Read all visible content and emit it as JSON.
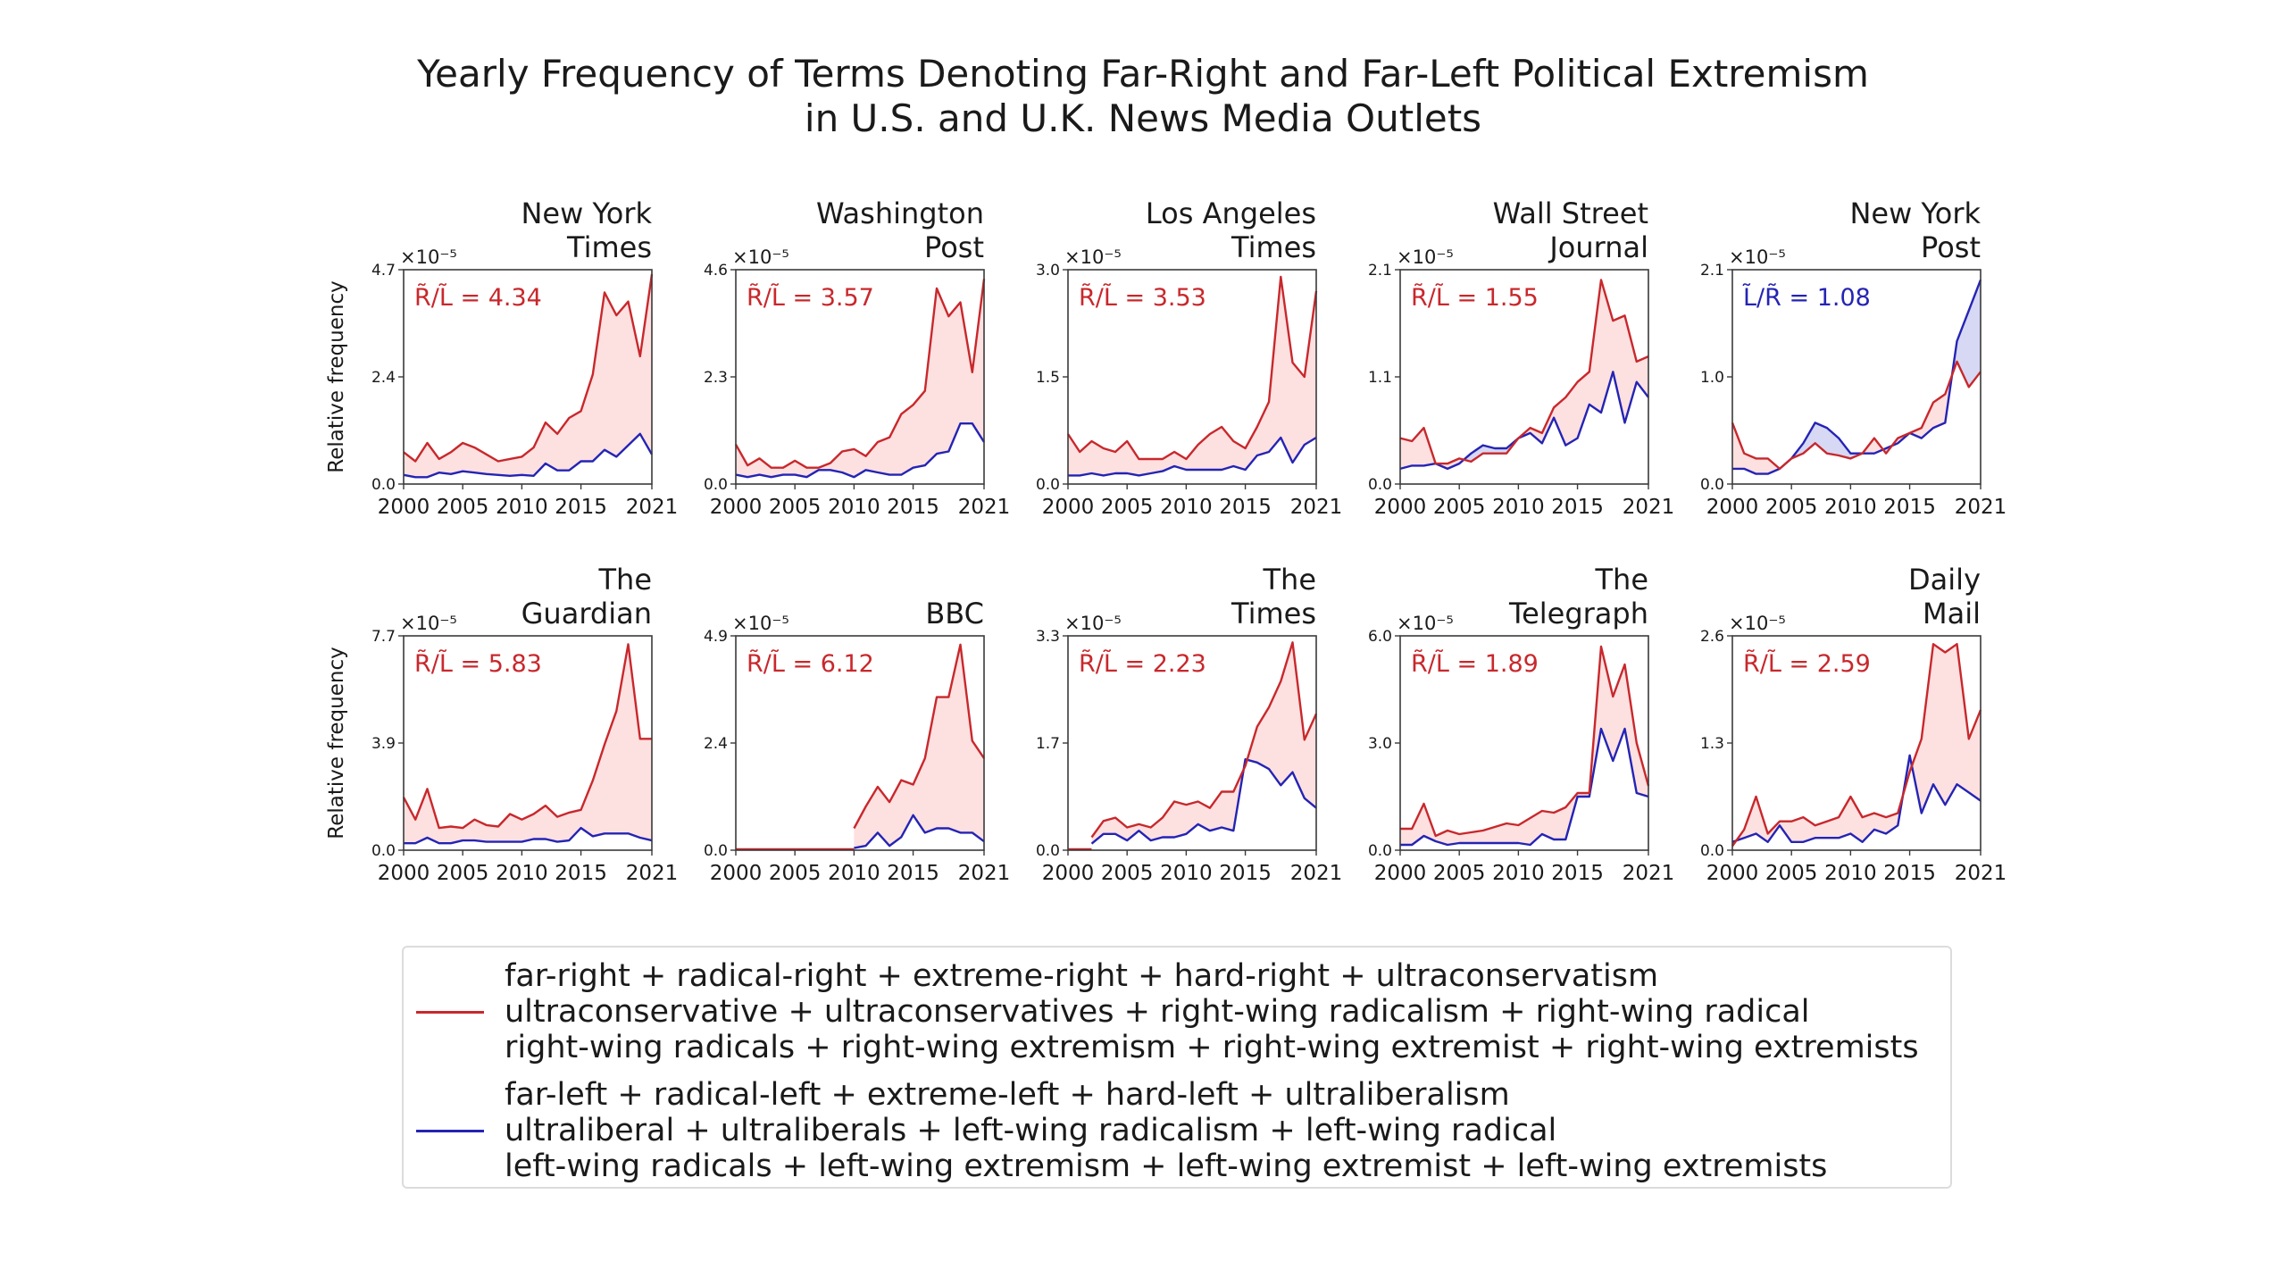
{
  "title_lines": [
    "Yearly Frequency of Terms Denoting Far-Right and Far-Left Political Extremism",
    "in U.S. and U.K. News Media Outlets"
  ],
  "colors": {
    "right": "#c8282c",
    "left": "#2424b4",
    "right_fill": "#fde0e0",
    "left_fill": "#d6d8f4"
  },
  "legend": {
    "right": {
      "lines": [
        "far-right + radical-right + extreme-right + hard-right + ultraconservatism",
        "ultraconservative + ultraconservatives + right-wing radicalism + right-wing radical",
        "right-wing radicals + right-wing extremism + right-wing extremist + right-wing extremists"
      ]
    },
    "left": {
      "lines": [
        "far-left + radical-left + extreme-left + hard-left + ultraliberalism",
        "ultraliberal + ultraliberals + left-wing radicalism + left-wing radical",
        "left-wing radicals + left-wing extremism + left-wing extremist + left-wing extremists"
      ]
    }
  },
  "chart_data": [
    {
      "type": "line",
      "title": [
        "New York",
        "Times"
      ],
      "ylabel": "Relative frequency",
      "scale_label": "×10⁻⁵",
      "ylim": [
        0,
        4.7
      ],
      "yticks": [
        "0.0",
        "2.4",
        "4.7"
      ],
      "xlim": [
        2000,
        2021
      ],
      "xticks": [
        "2000",
        "2005",
        "2010",
        "2015",
        "2021"
      ],
      "ratio": {
        "text": "R̃/L̃ = 4.34",
        "series": "right"
      },
      "x": [
        2000,
        2001,
        2002,
        2003,
        2004,
        2005,
        2006,
        2007,
        2008,
        2009,
        2010,
        2011,
        2012,
        2013,
        2014,
        2015,
        2016,
        2017,
        2018,
        2019,
        2020,
        2021
      ],
      "series": [
        {
          "key": "right",
          "values": [
            0.7,
            0.5,
            0.9,
            0.55,
            0.7,
            0.9,
            0.8,
            0.65,
            0.5,
            0.55,
            0.6,
            0.8,
            1.35,
            1.1,
            1.45,
            1.6,
            2.4,
            4.2,
            3.7,
            4.0,
            2.8,
            4.6
          ]
        },
        {
          "key": "left",
          "values": [
            0.2,
            0.15,
            0.15,
            0.25,
            0.22,
            0.28,
            0.25,
            0.22,
            0.2,
            0.18,
            0.2,
            0.18,
            0.45,
            0.3,
            0.3,
            0.5,
            0.5,
            0.75,
            0.6,
            0.85,
            1.1,
            0.65
          ]
        }
      ]
    },
    {
      "type": "line",
      "title": [
        "Washington",
        "Post"
      ],
      "ylabel": "",
      "scale_label": "×10⁻⁵",
      "ylim": [
        0,
        4.6
      ],
      "yticks": [
        "0.0",
        "2.3",
        "4.6"
      ],
      "xlim": [
        2000,
        2021
      ],
      "xticks": [
        "2000",
        "2005",
        "2010",
        "2015",
        "2021"
      ],
      "ratio": {
        "text": "R̃/L̃ = 3.57",
        "series": "right"
      },
      "x": [
        2000,
        2001,
        2002,
        2003,
        2004,
        2005,
        2006,
        2007,
        2008,
        2009,
        2010,
        2011,
        2012,
        2013,
        2014,
        2015,
        2016,
        2017,
        2018,
        2019,
        2020,
        2021
      ],
      "series": [
        {
          "key": "right",
          "values": [
            0.85,
            0.4,
            0.55,
            0.35,
            0.35,
            0.5,
            0.35,
            0.35,
            0.45,
            0.7,
            0.75,
            0.6,
            0.9,
            1.0,
            1.5,
            1.7,
            2.0,
            4.2,
            3.6,
            3.9,
            2.4,
            4.4
          ]
        },
        {
          "key": "left",
          "values": [
            0.2,
            0.15,
            0.2,
            0.15,
            0.2,
            0.2,
            0.15,
            0.3,
            0.3,
            0.25,
            0.15,
            0.3,
            0.25,
            0.2,
            0.2,
            0.35,
            0.4,
            0.65,
            0.7,
            1.3,
            1.3,
            0.9
          ]
        }
      ]
    },
    {
      "type": "line",
      "title": [
        "Los Angeles",
        "Times"
      ],
      "ylabel": "",
      "scale_label": "×10⁻⁵",
      "ylim": [
        0,
        3.0
      ],
      "yticks": [
        "0.0",
        "1.5",
        "3.0"
      ],
      "xlim": [
        2000,
        2021
      ],
      "xticks": [
        "2000",
        "2005",
        "2010",
        "2015",
        "2021"
      ],
      "ratio": {
        "text": "R̃/L̃ = 3.53",
        "series": "right"
      },
      "x": [
        2000,
        2001,
        2002,
        2003,
        2004,
        2005,
        2006,
        2007,
        2008,
        2009,
        2010,
        2011,
        2012,
        2013,
        2014,
        2015,
        2016,
        2017,
        2018,
        2019,
        2020,
        2021
      ],
      "series": [
        {
          "key": "right",
          "values": [
            0.7,
            0.45,
            0.6,
            0.5,
            0.45,
            0.6,
            0.35,
            0.35,
            0.35,
            0.45,
            0.35,
            0.55,
            0.7,
            0.8,
            0.6,
            0.5,
            0.8,
            1.15,
            2.9,
            1.7,
            1.5,
            2.7
          ]
        },
        {
          "key": "left",
          "values": [
            0.12,
            0.12,
            0.15,
            0.12,
            0.15,
            0.15,
            0.12,
            0.15,
            0.18,
            0.25,
            0.2,
            0.2,
            0.2,
            0.2,
            0.25,
            0.2,
            0.4,
            0.45,
            0.65,
            0.3,
            0.55,
            0.65
          ]
        }
      ]
    },
    {
      "type": "line",
      "title": [
        "Wall Street",
        "Journal"
      ],
      "ylabel": "",
      "scale_label": "×10⁻⁵",
      "ylim": [
        0,
        2.1
      ],
      "yticks": [
        "0.0",
        "1.1",
        "2.1"
      ],
      "xlim": [
        2000,
        2021
      ],
      "xticks": [
        "2000",
        "2005",
        "2010",
        "2015",
        "2021"
      ],
      "ratio": {
        "text": "R̃/L̃ = 1.55",
        "series": "right"
      },
      "x": [
        2000,
        2001,
        2002,
        2003,
        2004,
        2005,
        2006,
        2007,
        2008,
        2009,
        2010,
        2011,
        2012,
        2013,
        2014,
        2015,
        2016,
        2017,
        2018,
        2019,
        2020,
        2021
      ],
      "series": [
        {
          "key": "right",
          "values": [
            0.45,
            0.42,
            0.55,
            0.2,
            0.2,
            0.25,
            0.22,
            0.3,
            0.3,
            0.3,
            0.45,
            0.55,
            0.5,
            0.75,
            0.85,
            1.0,
            1.1,
            2.0,
            1.6,
            1.65,
            1.2,
            1.25
          ]
        },
        {
          "key": "left",
          "values": [
            0.15,
            0.18,
            0.18,
            0.2,
            0.15,
            0.2,
            0.3,
            0.38,
            0.35,
            0.35,
            0.45,
            0.5,
            0.4,
            0.65,
            0.38,
            0.45,
            0.78,
            0.7,
            1.1,
            0.6,
            1.0,
            0.85
          ]
        }
      ]
    },
    {
      "type": "line",
      "title": [
        "New York",
        "Post"
      ],
      "ylabel": "",
      "scale_label": "×10⁻⁵",
      "ylim": [
        0,
        2.1
      ],
      "yticks": [
        "0.0",
        "1.0",
        "2.1"
      ],
      "xlim": [
        2000,
        2021
      ],
      "xticks": [
        "2000",
        "2005",
        "2010",
        "2015",
        "2021"
      ],
      "ratio": {
        "text": "L̃/R̃ = 1.08",
        "series": "left"
      },
      "x": [
        2000,
        2001,
        2002,
        2003,
        2004,
        2005,
        2006,
        2007,
        2008,
        2009,
        2010,
        2011,
        2012,
        2013,
        2014,
        2015,
        2016,
        2017,
        2018,
        2019,
        2020,
        2021
      ],
      "series": [
        {
          "key": "right",
          "values": [
            0.6,
            0.3,
            0.25,
            0.25,
            0.15,
            0.25,
            0.3,
            0.4,
            0.3,
            0.28,
            0.25,
            0.3,
            0.45,
            0.3,
            0.45,
            0.5,
            0.55,
            0.8,
            0.88,
            1.2,
            0.95,
            1.1
          ]
        },
        {
          "key": "left",
          "values": [
            0.15,
            0.15,
            0.1,
            0.1,
            0.15,
            0.25,
            0.4,
            0.6,
            0.55,
            0.45,
            0.3,
            0.3,
            0.3,
            0.35,
            0.4,
            0.5,
            0.45,
            0.55,
            0.6,
            1.4,
            1.7,
            2.0
          ]
        }
      ]
    },
    {
      "type": "line",
      "title": [
        "The",
        "Guardian"
      ],
      "ylabel": "Relative frequency",
      "scale_label": "×10⁻⁵",
      "ylim": [
        0,
        7.7
      ],
      "yticks": [
        "0.0",
        "3.9",
        "7.7"
      ],
      "xlim": [
        2000,
        2021
      ],
      "xticks": [
        "2000",
        "2005",
        "2010",
        "2015",
        "2021"
      ],
      "ratio": {
        "text": "R̃/L̃ = 5.83",
        "series": "right"
      },
      "x": [
        2000,
        2001,
        2002,
        2003,
        2004,
        2005,
        2006,
        2007,
        2008,
        2009,
        2010,
        2011,
        2012,
        2013,
        2014,
        2015,
        2016,
        2017,
        2018,
        2019,
        2020,
        2021
      ],
      "series": [
        {
          "key": "right",
          "values": [
            1.9,
            1.1,
            2.2,
            0.8,
            0.85,
            0.8,
            1.1,
            0.9,
            0.85,
            1.3,
            1.1,
            1.3,
            1.6,
            1.2,
            1.35,
            1.45,
            2.5,
            3.8,
            5.0,
            7.4,
            4.0,
            4.0
          ]
        },
        {
          "key": "left",
          "values": [
            0.25,
            0.25,
            0.45,
            0.25,
            0.25,
            0.35,
            0.35,
            0.3,
            0.3,
            0.3,
            0.3,
            0.4,
            0.4,
            0.3,
            0.35,
            0.8,
            0.5,
            0.6,
            0.6,
            0.6,
            0.45,
            0.35
          ]
        }
      ]
    },
    {
      "type": "line",
      "title": [
        "BBC"
      ],
      "ylabel": "",
      "scale_label": "×10⁻⁵",
      "ylim": [
        0,
        4.9
      ],
      "yticks": [
        "0.0",
        "2.4",
        "4.9"
      ],
      "xlim": [
        2000,
        2021
      ],
      "xticks": [
        "2000",
        "2005",
        "2010",
        "2015",
        "2021"
      ],
      "ratio": {
        "text": "R̃/L̃ = 6.12",
        "series": "right"
      },
      "x": [
        2010,
        2011,
        2012,
        2013,
        2014,
        2015,
        2016,
        2017,
        2018,
        2019,
        2020,
        2021
      ],
      "series": [
        {
          "key": "right",
          "values": [
            0.5,
            1.0,
            1.45,
            1.1,
            1.6,
            1.5,
            2.1,
            3.5,
            3.5,
            4.7,
            2.5,
            2.1
          ]
        },
        {
          "key": "left",
          "values": [
            0.05,
            0.1,
            0.4,
            0.1,
            0.3,
            0.8,
            0.4,
            0.5,
            0.5,
            0.4,
            0.4,
            0.2
          ]
        }
      ]
    },
    {
      "type": "line",
      "title": [
        "The",
        "Times"
      ],
      "ylabel": "",
      "scale_label": "×10⁻⁵",
      "ylim": [
        0,
        3.3
      ],
      "yticks": [
        "0.0",
        "1.7",
        "3.3"
      ],
      "xlim": [
        2000,
        2021
      ],
      "xticks": [
        "2000",
        "2005",
        "2010",
        "2015",
        "2021"
      ],
      "ratio": {
        "text": "R̃/L̃ = 2.23",
        "series": "right"
      },
      "x": [
        2002,
        2003,
        2004,
        2005,
        2006,
        2007,
        2008,
        2009,
        2010,
        2011,
        2012,
        2013,
        2014,
        2015,
        2016,
        2017,
        2018,
        2019,
        2020,
        2021
      ],
      "series": [
        {
          "key": "right",
          "values": [
            0.2,
            0.45,
            0.5,
            0.35,
            0.4,
            0.35,
            0.5,
            0.75,
            0.7,
            0.75,
            0.65,
            0.9,
            0.9,
            1.3,
            1.9,
            2.2,
            2.6,
            3.2,
            1.7,
            2.1
          ]
        },
        {
          "key": "left",
          "values": [
            0.1,
            0.25,
            0.25,
            0.15,
            0.3,
            0.15,
            0.2,
            0.2,
            0.25,
            0.4,
            0.3,
            0.35,
            0.3,
            1.4,
            1.35,
            1.25,
            1.0,
            1.2,
            0.8,
            0.65
          ]
        }
      ]
    },
    {
      "type": "line",
      "title": [
        "The",
        "Telegraph"
      ],
      "ylabel": "",
      "scale_label": "×10⁻⁵",
      "ylim": [
        0,
        6.0
      ],
      "yticks": [
        "0.0",
        "3.0",
        "6.0"
      ],
      "xlim": [
        2000,
        2021
      ],
      "xticks": [
        "2000",
        "2005",
        "2010",
        "2015",
        "2021"
      ],
      "ratio": {
        "text": "R̃/L̃ = 1.89",
        "series": "right"
      },
      "x": [
        2000,
        2001,
        2002,
        2003,
        2004,
        2005,
        2006,
        2007,
        2008,
        2009,
        2010,
        2011,
        2012,
        2013,
        2014,
        2015,
        2016,
        2017,
        2018,
        2019,
        2020,
        2021
      ],
      "series": [
        {
          "key": "right",
          "values": [
            0.6,
            0.6,
            1.3,
            0.4,
            0.55,
            0.45,
            0.5,
            0.55,
            0.65,
            0.75,
            0.7,
            0.9,
            1.1,
            1.05,
            1.2,
            1.6,
            1.6,
            5.7,
            4.3,
            5.2,
            3.0,
            1.8
          ]
        },
        {
          "key": "left",
          "values": [
            0.15,
            0.15,
            0.4,
            0.25,
            0.15,
            0.2,
            0.2,
            0.2,
            0.2,
            0.2,
            0.2,
            0.15,
            0.45,
            0.3,
            0.3,
            1.5,
            1.5,
            3.4,
            2.5,
            3.4,
            1.6,
            1.5
          ]
        }
      ]
    },
    {
      "type": "line",
      "title": [
        "Daily",
        "Mail"
      ],
      "ylabel": "",
      "scale_label": "×10⁻⁵",
      "ylim": [
        0,
        2.6
      ],
      "yticks": [
        "0.0",
        "1.3",
        "2.6"
      ],
      "xlim": [
        2000,
        2021
      ],
      "xticks": [
        "2000",
        "2005",
        "2010",
        "2015",
        "2021"
      ],
      "ratio": {
        "text": "R̃/L̃ = 2.59",
        "series": "right"
      },
      "x": [
        2000,
        2001,
        2002,
        2003,
        2004,
        2005,
        2006,
        2007,
        2008,
        2009,
        2010,
        2011,
        2012,
        2013,
        2014,
        2015,
        2016,
        2017,
        2018,
        2019,
        2020,
        2021
      ],
      "series": [
        {
          "key": "right",
          "values": [
            0.05,
            0.25,
            0.65,
            0.2,
            0.35,
            0.35,
            0.4,
            0.3,
            0.35,
            0.4,
            0.65,
            0.4,
            0.45,
            0.4,
            0.45,
            0.95,
            1.35,
            2.5,
            2.4,
            2.5,
            1.35,
            1.7
          ]
        },
        {
          "key": "left",
          "values": [
            0.1,
            0.15,
            0.2,
            0.1,
            0.3,
            0.1,
            0.1,
            0.15,
            0.15,
            0.15,
            0.2,
            0.1,
            0.25,
            0.2,
            0.3,
            1.15,
            0.45,
            0.8,
            0.55,
            0.8,
            0.7,
            0.6
          ]
        }
      ]
    }
  ]
}
